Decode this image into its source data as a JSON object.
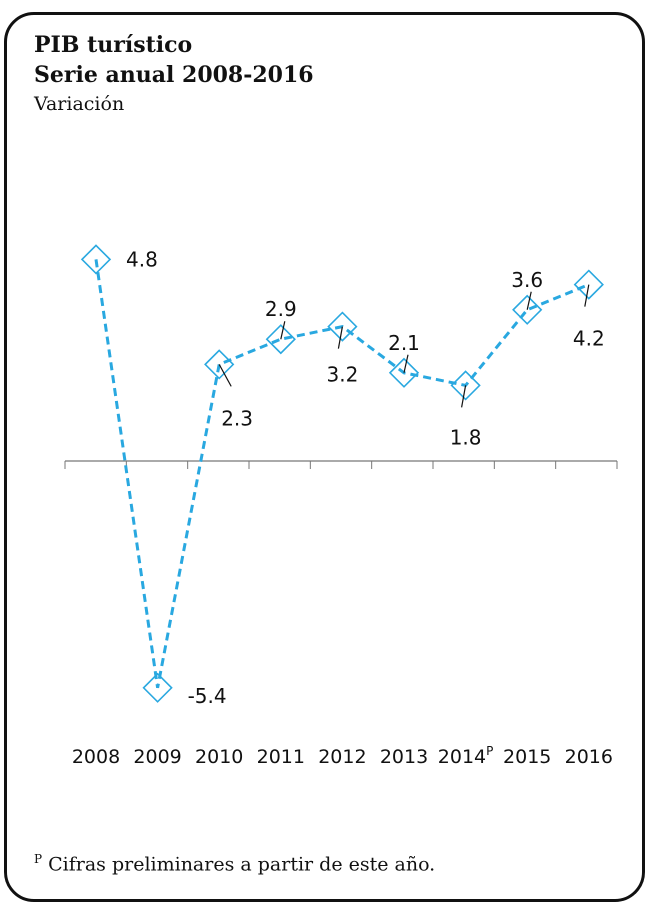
{
  "header": {
    "title_line1": "PIB turístico",
    "title_line2": "Serie anual 2008-2016",
    "subtitle": "Variación"
  },
  "chart_data": {
    "type": "line",
    "categories": [
      "2008",
      "2009",
      "2010",
      "2011",
      "2012",
      "2013",
      "2014",
      "2015",
      "2016"
    ],
    "preliminary_marker": {
      "after_category": "2014",
      "text": "P"
    },
    "series": [
      {
        "values": [
          4.8,
          -5.4,
          2.3,
          2.9,
          3.2,
          2.1,
          1.8,
          3.6,
          4.2
        ]
      }
    ],
    "data_labels": [
      "4.8",
      "-5.4",
      "2.3",
      "2.9",
      "3.2",
      "2.1",
      "1.8",
      "3.6",
      "4.2"
    ],
    "line_color": "#29a8e0",
    "line_style": "dashed",
    "marker": "diamond-open",
    "ylim": [
      -6,
      6
    ],
    "grid": false,
    "title": "",
    "xlabel": "",
    "ylabel": ""
  },
  "footnote": {
    "marker": "P",
    "text": " Cifras preliminares a partir de este año."
  }
}
